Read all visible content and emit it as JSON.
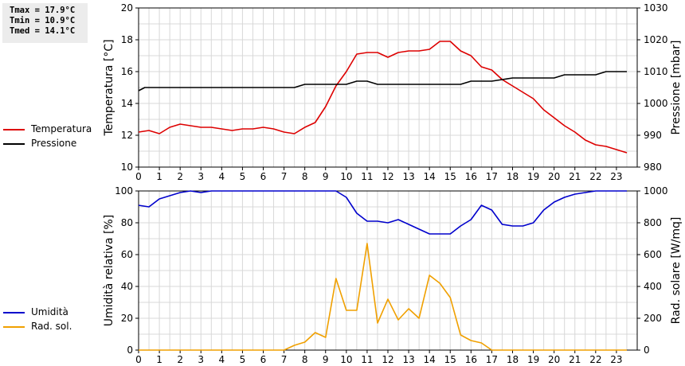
{
  "stats": {
    "tmax": "Tmax = 17.9°C",
    "tmin": "Tmin = 10.9°C",
    "tmed": "Tmed = 14.1°C"
  },
  "colors": {
    "temperature": "#dd0000",
    "pressure": "#000000",
    "humidity": "#0000cc",
    "radiation": "#f0a000",
    "grid": "#d8d8d8"
  },
  "legend_top": [
    {
      "label": "Temperatura",
      "color": "#dd0000"
    },
    {
      "label": "Pressione",
      "color": "#000000"
    }
  ],
  "legend_bottom": [
    {
      "label": "Umidità",
      "color": "#0000cc"
    },
    {
      "label": "Rad. sol.",
      "color": "#f0a000"
    }
  ],
  "chart_data": [
    {
      "type": "line",
      "title": "",
      "xlabel": "",
      "ylabel": "Temperatura [°C]",
      "y2label": "Pressione [mbar]",
      "xlim": [
        0,
        24
      ],
      "ylim": [
        10,
        20
      ],
      "y2lim": [
        980,
        1030
      ],
      "xticks": [
        0,
        1,
        2,
        3,
        4,
        5,
        6,
        7,
        8,
        9,
        10,
        11,
        12,
        13,
        14,
        15,
        16,
        17,
        18,
        19,
        20,
        21,
        22,
        23
      ],
      "yticks": [
        10,
        12,
        14,
        16,
        18,
        20
      ],
      "y2ticks": [
        980,
        990,
        1000,
        1010,
        1020,
        1030
      ],
      "grid": true,
      "legend": "left",
      "series": [
        {
          "name": "Temperatura",
          "axis": "left",
          "x": [
            0,
            0.5,
            1,
            1.5,
            2,
            2.5,
            3,
            3.5,
            4,
            4.5,
            5,
            5.5,
            6,
            6.5,
            7,
            7.5,
            8,
            8.5,
            9,
            9.5,
            10,
            10.5,
            11,
            11.5,
            12,
            12.5,
            13,
            13.5,
            14,
            14.5,
            15,
            15.5,
            16,
            16.5,
            17,
            17.5,
            18,
            18.5,
            19,
            19.5,
            20,
            20.5,
            21,
            21.5,
            22,
            22.5,
            23,
            23.5
          ],
          "values": [
            12.2,
            12.3,
            12.1,
            12.5,
            12.7,
            12.6,
            12.5,
            12.5,
            12.4,
            12.3,
            12.4,
            12.4,
            12.5,
            12.4,
            12.2,
            12.1,
            12.5,
            12.8,
            13.8,
            15.1,
            16.0,
            17.1,
            17.2,
            17.2,
            16.9,
            17.2,
            17.3,
            17.3,
            17.4,
            17.9,
            17.9,
            17.3,
            17.0,
            16.3,
            16.1,
            15.5,
            15.1,
            14.7,
            14.3,
            13.6,
            13.1,
            12.6,
            12.2,
            11.7,
            11.4,
            11.3,
            11.1,
            10.9
          ]
        },
        {
          "name": "Pressione",
          "axis": "right",
          "x": [
            0,
            0.3,
            7.5,
            8,
            9.5,
            10,
            10.5,
            11,
            11.5,
            15.5,
            16,
            17,
            17.5,
            18,
            19.5,
            20,
            20.5,
            21,
            22,
            22.5,
            23.5
          ],
          "values": [
            1004,
            1005,
            1005,
            1006,
            1006,
            1006,
            1007,
            1007,
            1006,
            1006,
            1007,
            1007,
            1007.5,
            1008,
            1008,
            1008,
            1009,
            1009,
            1009,
            1010,
            1010
          ]
        }
      ]
    },
    {
      "type": "line",
      "title": "",
      "xlabel": "",
      "ylabel": "Umidità relativa [%]",
      "y2label": "Rad. solare [W/mq]",
      "xlim": [
        0,
        24
      ],
      "ylim": [
        0,
        100
      ],
      "y2lim": [
        0,
        1000
      ],
      "xticks": [
        0,
        1,
        2,
        3,
        4,
        5,
        6,
        7,
        8,
        9,
        10,
        11,
        12,
        13,
        14,
        15,
        16,
        17,
        18,
        19,
        20,
        21,
        22,
        23
      ],
      "yticks": [
        0,
        20,
        40,
        60,
        80,
        100
      ],
      "y2ticks": [
        0,
        200,
        400,
        600,
        800,
        1000
      ],
      "grid": true,
      "legend": "left",
      "series": [
        {
          "name": "Umidità",
          "axis": "left",
          "x": [
            0,
            0.5,
            1,
            1.5,
            2,
            2.5,
            3,
            3.5,
            4,
            9.5,
            10,
            10.5,
            11,
            11.5,
            12,
            12.5,
            13,
            13.5,
            14,
            14.5,
            15,
            15.5,
            16,
            16.5,
            17,
            17.5,
            18,
            18.5,
            19,
            19.5,
            20,
            20.5,
            21,
            21.5,
            22,
            22.5,
            23,
            23.5
          ],
          "values": [
            91,
            90,
            95,
            97,
            99,
            100,
            99,
            100,
            100,
            100,
            96,
            86,
            81,
            81,
            80,
            82,
            79,
            76,
            73,
            73,
            73,
            78,
            82,
            91,
            88,
            79,
            78,
            78,
            80,
            88,
            93,
            96,
            98,
            99,
            100,
            100,
            100,
            100
          ]
        },
        {
          "name": "Rad. sol.",
          "axis": "right",
          "x": [
            0,
            7,
            7.5,
            8,
            8.5,
            9,
            9.5,
            10,
            10.5,
            11,
            11.5,
            12,
            12.5,
            13,
            13.5,
            14,
            14.5,
            15,
            15.5,
            16,
            16.5,
            17,
            17.5,
            23.5
          ],
          "values": [
            0,
            0,
            30,
            50,
            110,
            80,
            450,
            250,
            250,
            670,
            170,
            320,
            190,
            260,
            200,
            470,
            420,
            330,
            95,
            60,
            45,
            0,
            0,
            0
          ]
        }
      ]
    }
  ]
}
